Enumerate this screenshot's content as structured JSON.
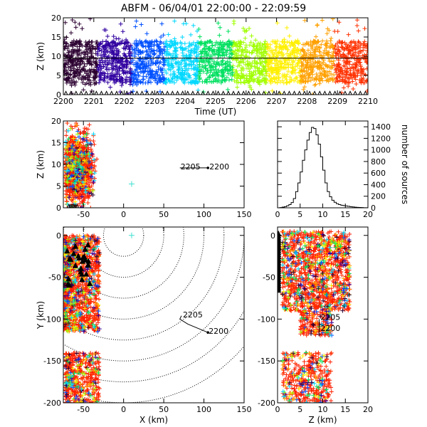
{
  "title": "ABFM - 06/04/01 22:00:00 - 22:09:59",
  "chart_data": [
    {
      "id": "time_height",
      "type": "scatter",
      "xlabel": "Time (UT)",
      "ylabel": "Z (km)",
      "xlim": [
        2200,
        2210
      ],
      "ylim": [
        0,
        20
      ],
      "xticks": [
        "2200",
        "2201",
        "2202",
        "2203",
        "2204",
        "2205",
        "2206",
        "2207",
        "2208",
        "2209",
        "2210"
      ],
      "yticks": [
        "0",
        "5",
        "10",
        "15",
        "20"
      ],
      "color_scale": "time-rainbow",
      "colors": [
        "#2b0030",
        "#3000a0",
        "#0050ff",
        "#00d8ff",
        "#00e060",
        "#a0ff00",
        "#fff000",
        "#ffa000",
        "#ff3000"
      ],
      "bulk_z_range": [
        3,
        14
      ],
      "horizontal_line_z": 9.5,
      "markers": "+",
      "ground_markers": "triangle"
    },
    {
      "id": "x_z",
      "type": "scatter",
      "xlabel": "",
      "ylabel": "Z (km)",
      "xlim": [
        -75,
        150
      ],
      "ylim": [
        0,
        20
      ],
      "xticks": [
        "-50",
        "0",
        "50",
        "100",
        "150"
      ],
      "yticks": [
        "0",
        "5",
        "10",
        "15",
        "20"
      ],
      "cluster_x": [
        -72,
        -33
      ],
      "cluster_z": [
        0,
        19
      ],
      "outlier": {
        "x": 10,
        "z": 5.5
      },
      "track": {
        "start_label": "2200",
        "end_label": "2205",
        "x": [
          105,
          70
        ],
        "z": [
          9.2,
          9.2
        ]
      }
    },
    {
      "id": "histogram",
      "type": "line",
      "xlabel": "",
      "ylabel": "number of sources",
      "xlim": [
        0,
        20
      ],
      "ylim": [
        0,
        1500
      ],
      "xticks": [
        "0",
        "5",
        "10",
        "15",
        "20"
      ],
      "yticks": [
        "0",
        "200",
        "400",
        "600",
        "800",
        "1000",
        "1200",
        "1400"
      ],
      "x": [
        0,
        0.5,
        1,
        1.5,
        2,
        2.5,
        3,
        3.5,
        4,
        4.5,
        5,
        5.5,
        6,
        6.5,
        7,
        7.5,
        8,
        8.5,
        9,
        9.5,
        10,
        10.5,
        11,
        11.5,
        12,
        12.5,
        13,
        13.5,
        14,
        14.5,
        15,
        15.5,
        16,
        16.5,
        17,
        17.5,
        18,
        18.5,
        19,
        19.5
      ],
      "values": [
        0,
        5,
        12,
        20,
        35,
        55,
        90,
        160,
        280,
        430,
        620,
        820,
        1000,
        1170,
        1300,
        1390,
        1370,
        1260,
        1100,
        880,
        650,
        430,
        280,
        190,
        130,
        95,
        70,
        55,
        45,
        38,
        32,
        26,
        20,
        15,
        10,
        8,
        6,
        4,
        2,
        1
      ]
    },
    {
      "id": "x_y",
      "type": "scatter",
      "xlabel": "X (km)",
      "ylabel": "Y (km)",
      "xlim": [
        -75,
        150
      ],
      "ylim": [
        -200,
        10
      ],
      "xticks": [
        "-50",
        "0",
        "50",
        "100",
        "150"
      ],
      "yticks": [
        "-200",
        "-150",
        "-100",
        "-50",
        "0"
      ],
      "range_rings_center": [
        0,
        0
      ],
      "range_rings_radius_km": [
        25,
        50,
        75,
        100,
        125,
        150,
        175,
        200
      ],
      "clusters": [
        {
          "x": [
            -75,
            -30
          ],
          "y": [
            -115,
            0
          ]
        },
        {
          "x": [
            -72,
            -30
          ],
          "y": [
            -200,
            -140
          ]
        }
      ],
      "outlier": {
        "x": 10,
        "y": 0
      },
      "track": {
        "start_label": "2200",
        "end_label": "2205"
      }
    },
    {
      "id": "z_y",
      "type": "scatter",
      "xlabel": "Z (km)",
      "ylabel": "",
      "xlim": [
        0,
        20
      ],
      "ylim": [
        -200,
        10
      ],
      "xticks": [
        "0",
        "5",
        "10",
        "15",
        "20"
      ],
      "yticks": [
        "-200",
        "-150",
        "-100",
        "-50",
        "0"
      ],
      "clusters": [
        {
          "z": [
            1,
            16
          ],
          "y": [
            -90,
            5
          ]
        },
        {
          "z": [
            5,
            12
          ],
          "y": [
            -120,
            -90
          ]
        },
        {
          "z": [
            1,
            12
          ],
          "y": [
            -200,
            -140
          ]
        }
      ],
      "track": {
        "start_label": "2200",
        "end_label": "2205"
      }
    }
  ]
}
